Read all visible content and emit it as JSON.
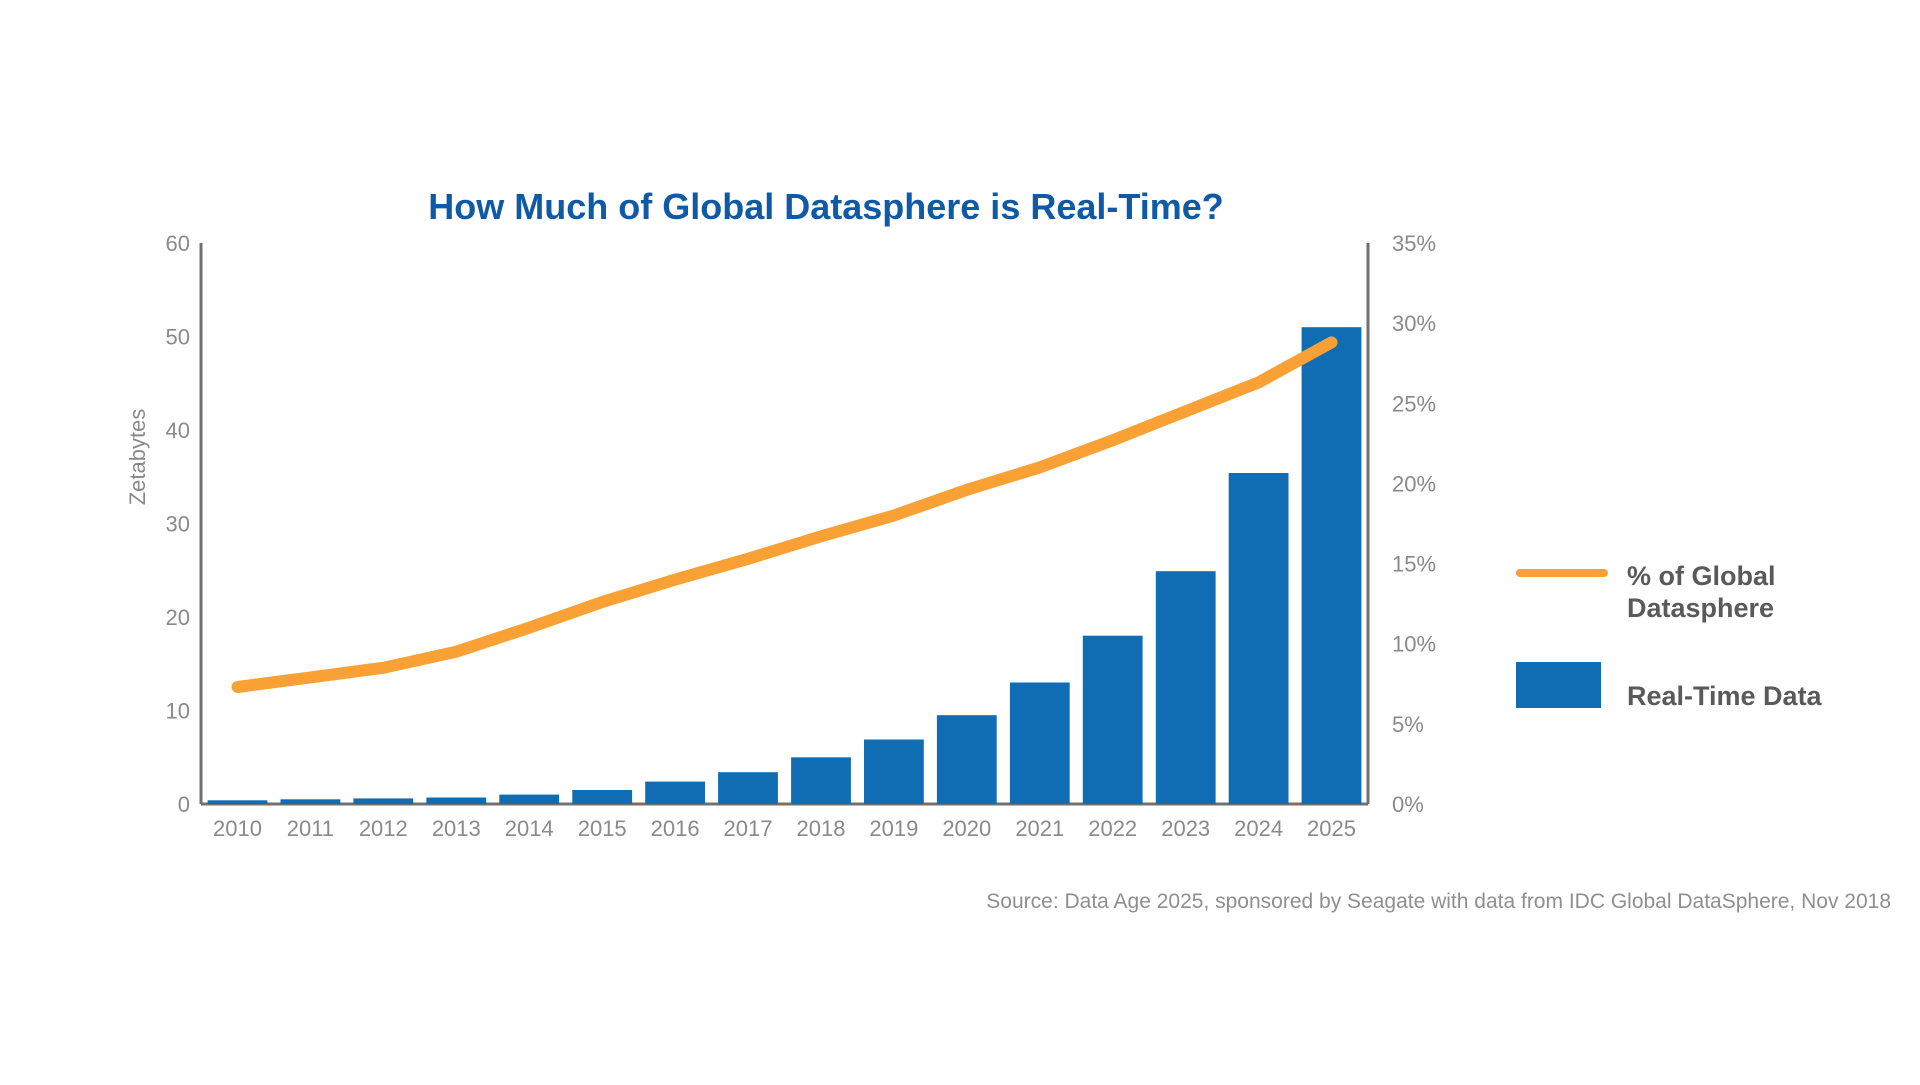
{
  "chart_data": {
    "type": "bar",
    "title": "How Much of Global Datasphere is Real-Time?",
    "source": "Source: Data Age 2025, sponsored by Seagate with data from IDC Global DataSphere, Nov 2018",
    "ylabel": "Zetabytes",
    "categories": [
      "2010",
      "2011",
      "2012",
      "2013",
      "2014",
      "2015",
      "2016",
      "2017",
      "2018",
      "2019",
      "2020",
      "2021",
      "2022",
      "2023",
      "2024",
      "2025"
    ],
    "ylim": [
      0,
      60
    ],
    "yticks": [
      "0",
      "10",
      "20",
      "30",
      "40",
      "50",
      "60"
    ],
    "y2lim": [
      0,
      35
    ],
    "y2ticks": [
      "0%",
      "5%",
      "10%",
      "15%",
      "20%",
      "25%",
      "30%",
      "35%"
    ],
    "series": [
      {
        "name": "Real-Time Data",
        "type": "bar",
        "axis": "left",
        "color": "#116DB3",
        "values": [
          0.4,
          0.5,
          0.6,
          0.7,
          1.0,
          1.5,
          2.4,
          3.4,
          5.0,
          6.9,
          9.5,
          13.0,
          18.0,
          24.9,
          35.4,
          51.0
        ]
      },
      {
        "name": "% of Global Datasphere",
        "type": "line",
        "axis": "right",
        "color": "#F9A135",
        "values": [
          7.3,
          7.9,
          8.5,
          9.5,
          11.0,
          12.6,
          14.0,
          15.3,
          16.7,
          18.0,
          19.6,
          21.0,
          22.7,
          24.5,
          26.3,
          28.8
        ]
      }
    ],
    "legend": {
      "position": "right",
      "items": [
        {
          "label_lines": [
            "% of Global",
            "Datasphere"
          ],
          "kind": "line",
          "color": "#F9A135"
        },
        {
          "label_lines": [
            "Real-Time Data"
          ],
          "kind": "box",
          "color": "#116DB3"
        }
      ]
    },
    "colors": {
      "title": "#0E5AA7",
      "axis_line": "#707070",
      "tick_text": "#8A8A8A",
      "legend_text": "#5A5A5A"
    }
  }
}
